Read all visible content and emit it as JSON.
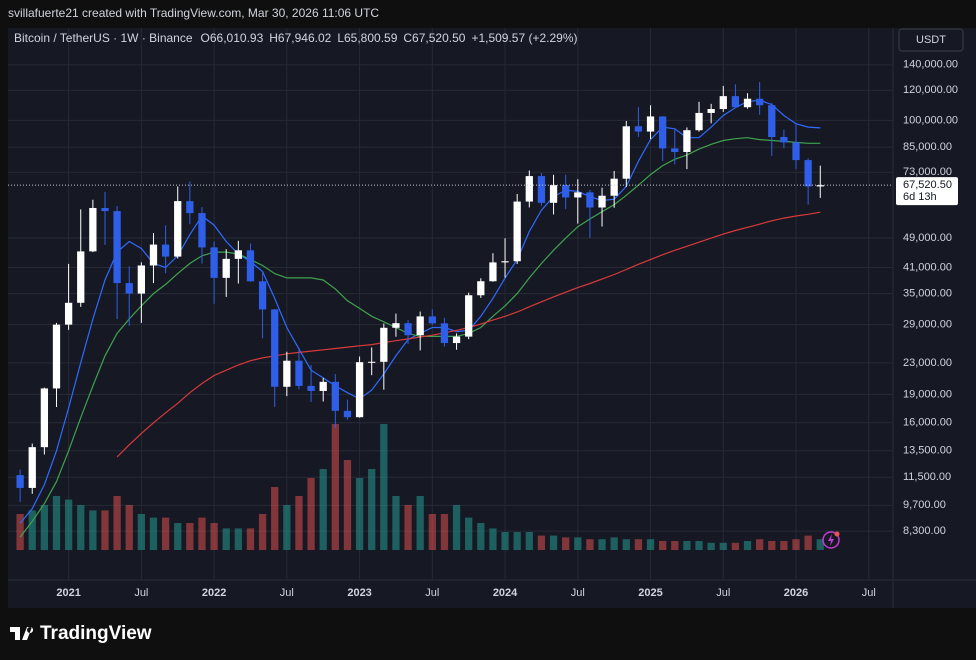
{
  "chart_data": {
    "type": "candlestick",
    "attribution": "svillafuerte21 created with TradingView.com, Mar 30, 2026 11:06 UTC",
    "symbol": "Bitcoin / TetherUS · 1W · Binance",
    "ohlc_labels": [
      "O66,010.93",
      "H67,946.02",
      "L65,800.59",
      "C67,520.50",
      "+1,509.57 (+2.29%)"
    ],
    "currency": "USDT",
    "brand": "TradingView",
    "countdown": "6d 13h",
    "last_price": {
      "value": 67520.5,
      "label": "67,520.50"
    },
    "log_scale": true,
    "grid": true,
    "up_color": "#ffffff",
    "down_color": "#2f5fe8",
    "volume_up_color": "#26a69a",
    "volume_down_color": "#ef5350",
    "x": [
      "2020-09",
      "2020-10",
      "2020-11",
      "2020-12",
      "2021-01",
      "2021-02",
      "2021-03",
      "2021-04",
      "2021-05",
      "2021-06",
      "2021-07",
      "2021-08",
      "2021-09",
      "2021-10",
      "2021-11",
      "2021-12",
      "2022-01",
      "2022-02",
      "2022-03",
      "2022-04",
      "2022-05",
      "2022-06",
      "2022-07",
      "2022-08",
      "2022-09",
      "2022-10",
      "2022-11",
      "2022-12",
      "2023-01",
      "2023-02",
      "2023-03",
      "2023-04",
      "2023-05",
      "2023-06",
      "2023-07",
      "2023-08",
      "2023-09",
      "2023-10",
      "2023-11",
      "2023-12",
      "2024-01",
      "2024-02",
      "2024-03",
      "2024-04",
      "2024-05",
      "2024-06",
      "2024-07",
      "2024-08",
      "2024-09",
      "2024-10",
      "2024-11",
      "2024-12",
      "2025-01",
      "2025-02",
      "2025-03",
      "2025-04",
      "2025-05",
      "2025-06",
      "2025-07",
      "2025-08",
      "2025-09",
      "2025-10",
      "2025-11",
      "2025-12",
      "2026-01",
      "2026-02",
      "2026-03"
    ],
    "open": [
      11650,
      10780,
      13800,
      19700,
      29000,
      33100,
      45200,
      58800,
      57700,
      37300,
      35000,
      41500,
      47100,
      43800,
      61300,
      57000,
      46300,
      38500,
      43200,
      45500,
      37700,
      31800,
      19900,
      23300,
      20000,
      19400,
      20500,
      17200,
      16550,
      23100,
      23150,
      28450,
      29250,
      27200,
      30480,
      29230,
      25940,
      26970,
      34650,
      37720,
      42280,
      42580,
      61130,
      71330,
      60670,
      67530,
      62680,
      64630,
      58970,
      63330,
      70220,
      96450,
      93430,
      102400,
      84370,
      82550,
      94200,
      104600,
      107100,
      115800,
      108300,
      114000,
      109600,
      90400,
      87500,
      78600,
      67000
    ],
    "high": [
      12050,
      14100,
      19800,
      29300,
      41900,
      58300,
      61800,
      64800,
      59500,
      41300,
      42300,
      50500,
      52900,
      67000,
      69000,
      59100,
      48000,
      45800,
      48200,
      47400,
      40000,
      31900,
      24600,
      25200,
      22700,
      21000,
      21500,
      18400,
      23900,
      25250,
      29200,
      31000,
      29800,
      31400,
      31800,
      30200,
      27500,
      35200,
      38400,
      44700,
      48950,
      64000,
      73800,
      72700,
      71900,
      71950,
      70000,
      65600,
      66500,
      73600,
      99600,
      108350,
      109600,
      102500,
      95000,
      95800,
      111900,
      110500,
      123200,
      124400,
      117900,
      126200,
      111200,
      94600,
      97900,
      79500,
      76000
    ],
    "low": [
      9900,
      10400,
      13200,
      17600,
      28100,
      32300,
      45000,
      47000,
      30000,
      28800,
      29300,
      37300,
      39600,
      43300,
      53300,
      42000,
      32900,
      34300,
      37200,
      37600,
      26700,
      17600,
      18800,
      19600,
      18150,
      18200,
      15500,
      16300,
      16500,
      21350,
      19550,
      26950,
      25800,
      24800,
      28900,
      25400,
      24900,
      26550,
      34100,
      37600,
      38550,
      41900,
      59000,
      59600,
      56550,
      58400,
      53500,
      49000,
      52550,
      58900,
      66800,
      90500,
      89250,
      78200,
      76600,
      74400,
      93400,
      98200,
      105300,
      108100,
      107300,
      103500,
      80600,
      84400,
      74500,
      60000,
      62500
    ],
    "close": [
      10780,
      13800,
      19700,
      29000,
      33100,
      45200,
      58800,
      57700,
      37300,
      35000,
      41500,
      47100,
      43800,
      61300,
      57000,
      46300,
      38500,
      43200,
      45500,
      37700,
      31800,
      19900,
      23300,
      20000,
      19400,
      20500,
      17200,
      16550,
      23100,
      23150,
      28450,
      29250,
      27200,
      30480,
      29230,
      25940,
      26970,
      34650,
      37720,
      42280,
      42580,
      61130,
      71330,
      60670,
      67530,
      62680,
      64630,
      58970,
      63330,
      70220,
      96450,
      93430,
      102400,
      84370,
      82550,
      94200,
      104600,
      107100,
      115800,
      108300,
      114000,
      109600,
      90400,
      87500,
      78600,
      67000,
      67520
    ],
    "volume": [
      20,
      22,
      25,
      30,
      28,
      25,
      22,
      22,
      30,
      25,
      20,
      18,
      18,
      15,
      15,
      18,
      15,
      12,
      12,
      12,
      20,
      35,
      25,
      30,
      40,
      45,
      70,
      50,
      40,
      45,
      70,
      30,
      25,
      30,
      20,
      20,
      25,
      18,
      15,
      12,
      10,
      10,
      10,
      8,
      8,
      7,
      7,
      6,
      6,
      7,
      6,
      6,
      6,
      5,
      5,
      5,
      5,
      4,
      4,
      4,
      5,
      6,
      5,
      5,
      6,
      8,
      6
    ],
    "vlim": [
      0,
      75
    ],
    "series": [
      {
        "color": "#2f6bff",
        "values": [
          8700,
          9500,
          11000,
          13500,
          17500,
          23000,
          30000,
          38000,
          45000,
          48000,
          46000,
          42000,
          41000,
          44000,
          50000,
          56000,
          53000,
          48000,
          44500,
          42500,
          40000,
          34000,
          28500,
          25000,
          22000,
          21000,
          20000,
          19200,
          18500,
          19500,
          21500,
          24000,
          26500,
          27500,
          28500,
          28500,
          27800,
          28000,
          30500,
          34000,
          38500,
          43000,
          51000,
          58000,
          63000,
          65500,
          65000,
          63000,
          61500,
          62000,
          67000,
          78000,
          89000,
          96000,
          95000,
          90000,
          90000,
          96000,
          103000,
          108000,
          112000,
          113000,
          110000,
          103000,
          98000,
          96000,
          95500
        ]
      },
      {
        "color": "#3fa34d",
        "values": [
          8000,
          8800,
          9800,
          11200,
          13500,
          16500,
          20000,
          24000,
          27500,
          30000,
          32500,
          35000,
          37000,
          39500,
          42000,
          44000,
          45000,
          45000,
          44500,
          43000,
          41500,
          39500,
          38500,
          38500,
          38500,
          38000,
          36000,
          33500,
          32000,
          30500,
          29500,
          28500,
          27500,
          27000,
          27000,
          27000,
          27000,
          27500,
          28500,
          30500,
          32500,
          35000,
          38500,
          42000,
          45500,
          49000,
          52500,
          55000,
          57500,
          60000,
          63500,
          67500,
          72000,
          76000,
          79000,
          81000,
          84000,
          86500,
          88500,
          89500,
          90000,
          89000,
          88500,
          88000,
          87500,
          87000,
          87000
        ]
      },
      {
        "color": "#d93a3a",
        "values": [
          null,
          null,
          null,
          null,
          null,
          null,
          null,
          null,
          13000,
          14000,
          15000,
          16000,
          17000,
          18000,
          19200,
          20300,
          21300,
          22000,
          22700,
          23300,
          23700,
          24000,
          24300,
          24500,
          24700,
          24900,
          25100,
          25300,
          25500,
          25700,
          26000,
          26300,
          26600,
          26900,
          27200,
          27600,
          28000,
          28500,
          29100,
          29800,
          30500,
          31300,
          32300,
          33300,
          34300,
          35300,
          36300,
          37200,
          38200,
          39300,
          40500,
          41800,
          43000,
          44300,
          45500,
          46600,
          47800,
          49000,
          50200,
          51300,
          52300,
          53300,
          54400,
          55300,
          56000,
          56600,
          57300
        ]
      }
    ],
    "xlim": [
      "2020-08",
      "2026-09"
    ],
    "xticks": [
      {
        "value": "2021-01",
        "label": "2021"
      },
      {
        "value": "2021-07",
        "label": "Jul"
      },
      {
        "value": "2022-01",
        "label": "2022"
      },
      {
        "value": "2022-07",
        "label": "Jul"
      },
      {
        "value": "2023-01",
        "label": "2023"
      },
      {
        "value": "2023-07",
        "label": "Jul"
      },
      {
        "value": "2024-01",
        "label": "2024"
      },
      {
        "value": "2024-07",
        "label": "Jul"
      },
      {
        "value": "2025-01",
        "label": "2025"
      },
      {
        "value": "2025-07",
        "label": "Jul"
      },
      {
        "value": "2026-01",
        "label": "2026"
      },
      {
        "value": "2026-07",
        "label": "Jul"
      }
    ],
    "ylim": [
      6170,
      175000
    ],
    "yticks": [
      {
        "value": 140000,
        "label": "140,000.00"
      },
      {
        "value": 120000,
        "label": "120,000.00"
      },
      {
        "value": 100000,
        "label": "100,000.00"
      },
      {
        "value": 85000,
        "label": "85,000.00"
      },
      {
        "value": 73000,
        "label": "73,000.00"
      },
      {
        "value": 49000,
        "label": "49,000.00"
      },
      {
        "value": 41000,
        "label": "41,000.00"
      },
      {
        "value": 35000,
        "label": "35,000.00"
      },
      {
        "value": 29000,
        "label": "29,000.00"
      },
      {
        "value": 23000,
        "label": "23,000.00"
      },
      {
        "value": 19000,
        "label": "19,000.00"
      },
      {
        "value": 16000,
        "label": "16,000.00"
      },
      {
        "value": 13500,
        "label": "13,500.00"
      },
      {
        "value": 11500,
        "label": "11,500.00"
      },
      {
        "value": 9700,
        "label": "9,700.00"
      },
      {
        "value": 8300,
        "label": "8,300.00"
      }
    ]
  }
}
